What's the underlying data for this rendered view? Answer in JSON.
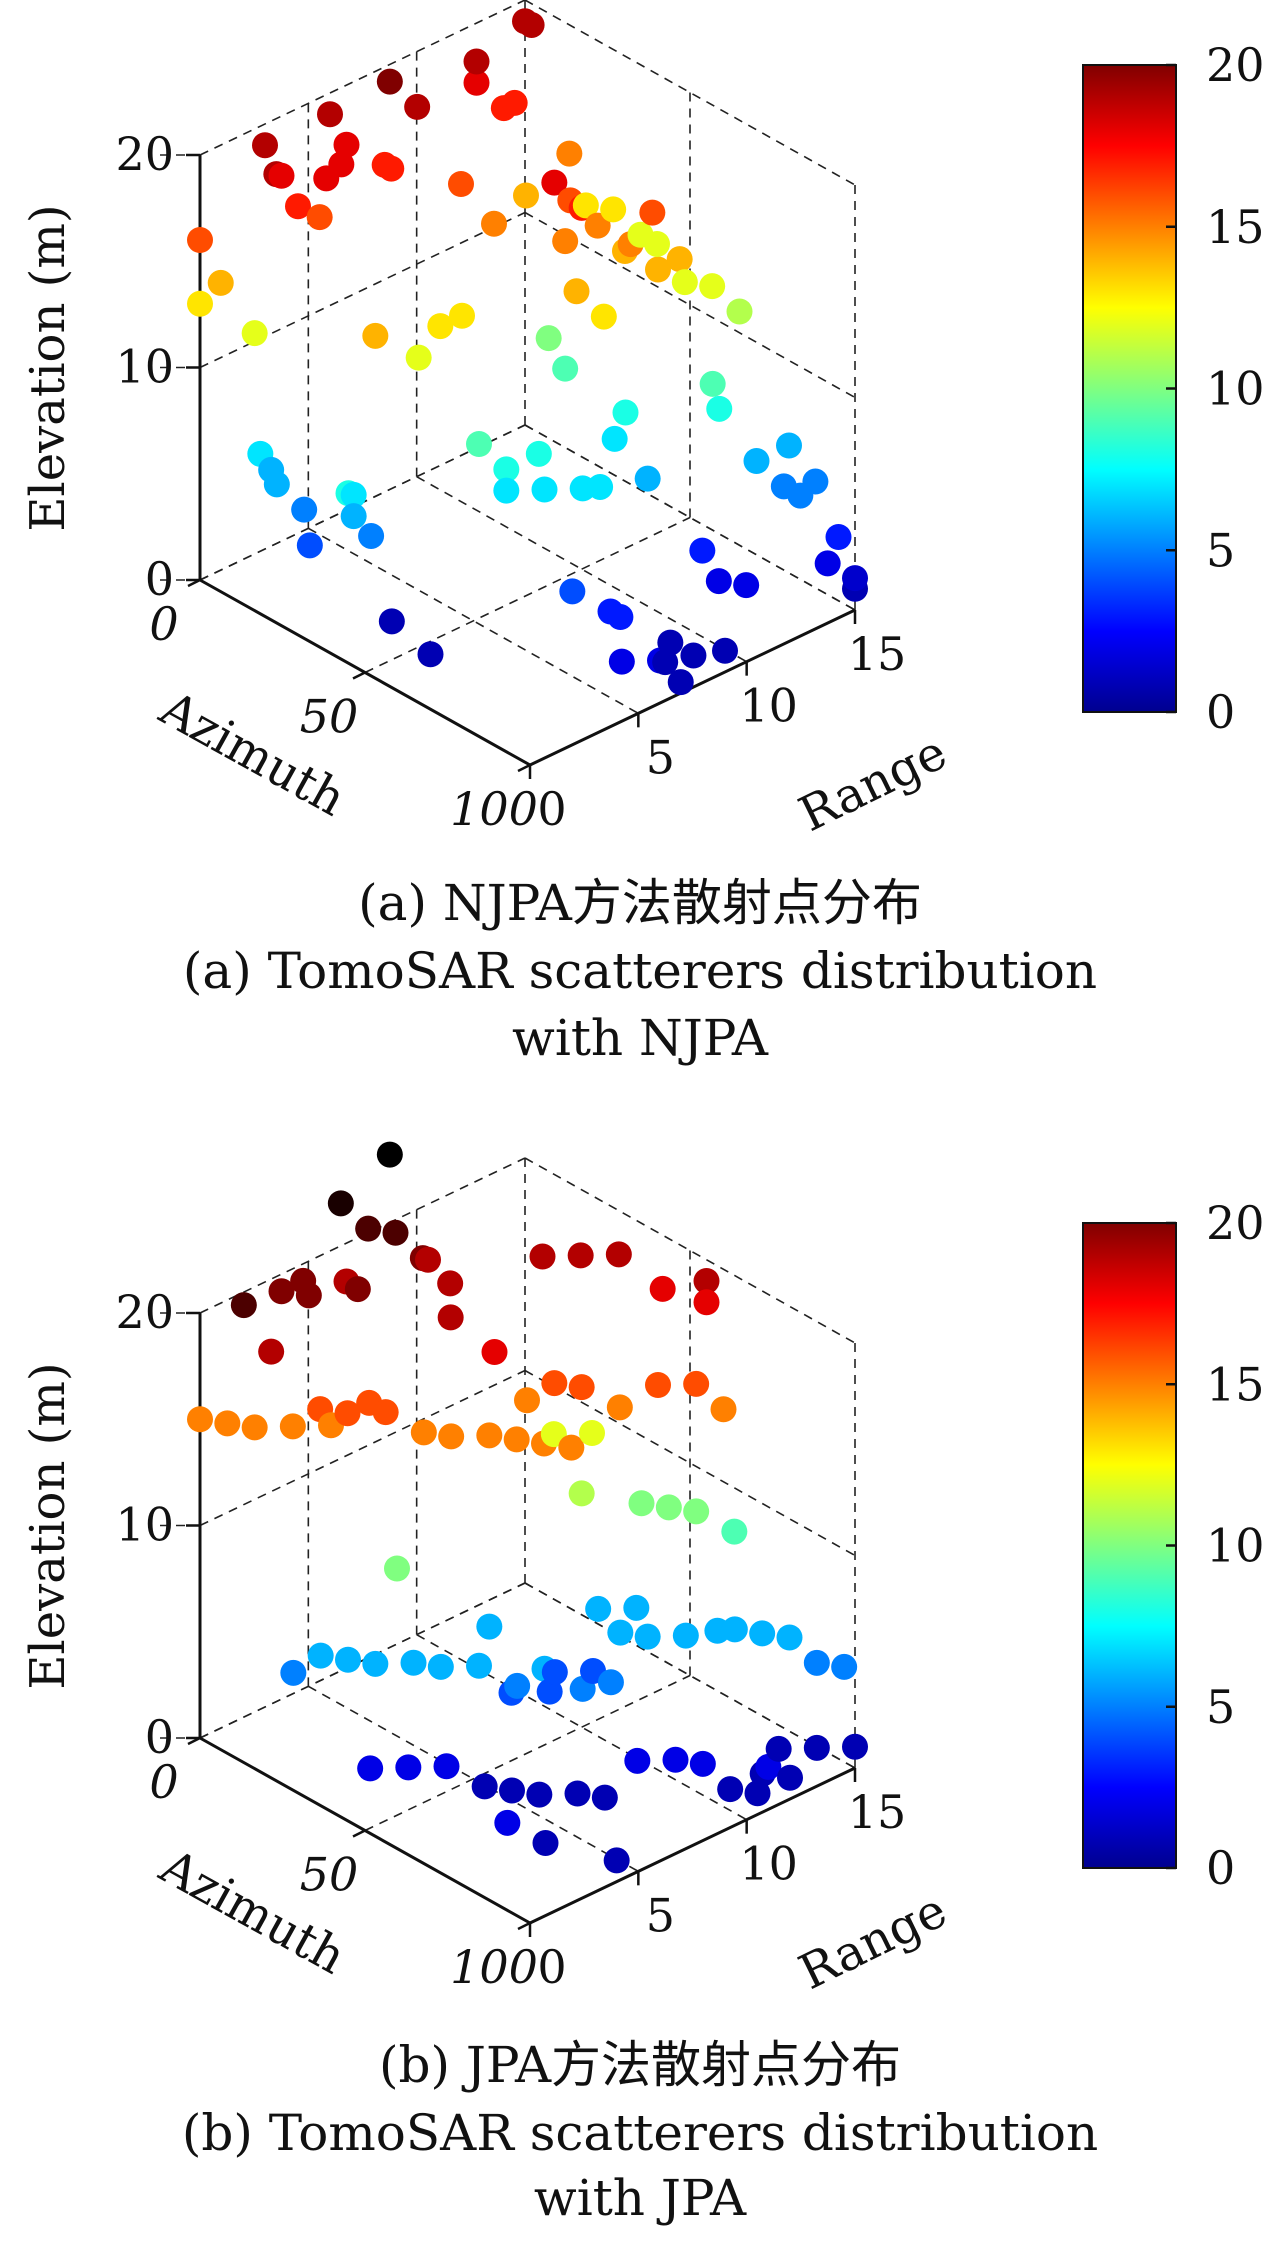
{
  "figure": {
    "panels": [
      {
        "caption_lines": [
          "(a) NJPA方法散射点分布",
          "(a) TomoSAR scatterers distribution",
          "with NJPA"
        ],
        "colorbar_ticks": [
          "20",
          "15",
          "10",
          "5",
          "0"
        ]
      },
      {
        "caption_lines": [
          "(b) JPA方法散射点分布",
          "(b) TomoSAR scatterers distribution",
          "with JPA"
        ],
        "colorbar_ticks": [
          "20",
          "15",
          "10",
          "5",
          "0"
        ]
      }
    ]
  },
  "chart_data": [
    {
      "type": "scatter",
      "zlabel": "Elevation (m)",
      "xlabel": "Range",
      "ylabel": "Azimuth",
      "xlim": [
        0,
        15
      ],
      "ylim": [
        0,
        100
      ],
      "zlim": [
        0,
        20
      ],
      "x_ticks": [
        "0",
        "5",
        "10",
        "15"
      ],
      "y_ticks": [
        "0",
        "50",
        "100"
      ],
      "z_ticks": [
        "0",
        "10",
        "20"
      ],
      "colormap": "jet",
      "clim": [
        0,
        20
      ],
      "grid": true,
      "points": [
        [
          0,
          0,
          16
        ],
        [
          0,
          0,
          13
        ],
        [
          0.5,
          3,
          14
        ],
        [
          1,
          10,
          12
        ],
        [
          0.5,
          15,
          7
        ],
        [
          1,
          15,
          6
        ],
        [
          0.5,
          20,
          6
        ],
        [
          1,
          25,
          5
        ],
        [
          0.5,
          30,
          4
        ],
        [
          1,
          40,
          7
        ],
        [
          1,
          40,
          6
        ],
        [
          1.5,
          42,
          5
        ],
        [
          0,
          45,
          8
        ],
        [
          2,
          40,
          14
        ],
        [
          2,
          45,
          1
        ],
        [
          1.5,
          60,
          1
        ],
        [
          2,
          10,
          19
        ],
        [
          3,
          0,
          19
        ],
        [
          3,
          5,
          18
        ],
        [
          3,
          10,
          17
        ],
        [
          4,
          10,
          16
        ],
        [
          4,
          12,
          18
        ],
        [
          5,
          10,
          18
        ],
        [
          6,
          0,
          19
        ],
        [
          6,
          5,
          18
        ],
        [
          7,
          10,
          17
        ],
        [
          7,
          12,
          17
        ],
        [
          5,
          40,
          13
        ],
        [
          6,
          40,
          13
        ],
        [
          4.5,
          55,
          9
        ],
        [
          5,
          60,
          8
        ],
        [
          5,
          60,
          7
        ],
        [
          6,
          65,
          7
        ],
        [
          7,
          70,
          7
        ],
        [
          7.5,
          72,
          7
        ],
        [
          6.5,
          60,
          8
        ],
        [
          4,
          40,
          12
        ],
        [
          5,
          80,
          4
        ],
        [
          6,
          85,
          3
        ],
        [
          7,
          95,
          1
        ],
        [
          8,
          97,
          1
        ],
        [
          9,
          100,
          1
        ],
        [
          5,
          95,
          2
        ],
        [
          6,
          100,
          2
        ],
        [
          6.5,
          103,
          1
        ],
        [
          6,
          88,
          3
        ],
        [
          8,
          90,
          1
        ],
        [
          9,
          20,
          16
        ],
        [
          9,
          30,
          15
        ],
        [
          9.5,
          45,
          18
        ],
        [
          10,
          50,
          17
        ],
        [
          9,
          55,
          14
        ],
        [
          9.5,
          60,
          13
        ],
        [
          10,
          40,
          10
        ],
        [
          10,
          45,
          9
        ],
        [
          10.5,
          60,
          8
        ],
        [
          10,
          60,
          7
        ],
        [
          10,
          70,
          6
        ],
        [
          11,
          80,
          3
        ],
        [
          11,
          85,
          2
        ],
        [
          11.5,
          90,
          2
        ],
        [
          10,
          45,
          15
        ],
        [
          11,
          40,
          16
        ],
        [
          11.5,
          45,
          15
        ],
        [
          12,
          50,
          14
        ],
        [
          12.5,
          55,
          16
        ],
        [
          12,
          60,
          14
        ],
        [
          13,
          60,
          14
        ],
        [
          11.5,
          55,
          15
        ],
        [
          12,
          5,
          18
        ],
        [
          12.5,
          10,
          17
        ],
        [
          13,
          10,
          17
        ],
        [
          14,
          20,
          15
        ],
        [
          14,
          25,
          13
        ],
        [
          14.5,
          30,
          13
        ],
        [
          15,
          35,
          12
        ],
        [
          15,
          40,
          12
        ],
        [
          14,
          55,
          12
        ],
        [
          14.5,
          60,
          12
        ],
        [
          15,
          65,
          11
        ],
        [
          13,
          70,
          9
        ],
        [
          13,
          72,
          8
        ],
        [
          13.5,
          80,
          6
        ],
        [
          14,
          85,
          5
        ],
        [
          14,
          90,
          5
        ],
        [
          14.5,
          95,
          2
        ],
        [
          15,
          100,
          1
        ],
        [
          15,
          100,
          1.5
        ],
        [
          15,
          0,
          19
        ],
        [
          15,
          2,
          19
        ],
        [
          15,
          80,
          6
        ],
        [
          15,
          88,
          5
        ],
        [
          15,
          95,
          3
        ],
        [
          8,
          5,
          20
        ],
        [
          8.5,
          10,
          19
        ],
        [
          12,
          20,
          14
        ],
        [
          12,
          5,
          19
        ]
      ]
    },
    {
      "type": "scatter",
      "zlabel": "Elevation (m)",
      "xlabel": "Range",
      "ylabel": "Azimuth",
      "xlim": [
        0,
        15
      ],
      "ylim": [
        0,
        100
      ],
      "zlim": [
        0,
        20
      ],
      "x_ticks": [
        "0",
        "5",
        "10",
        "15"
      ],
      "y_ticks": [
        "0",
        "50",
        "100"
      ],
      "z_ticks": [
        "0",
        "10",
        "20"
      ],
      "colormap": "jet",
      "clim": [
        0,
        20
      ],
      "grid": true,
      "points": [
        [
          0,
          0,
          15
        ],
        [
          0.5,
          5,
          15
        ],
        [
          1,
          10,
          15
        ],
        [
          2,
          15,
          15
        ],
        [
          2.5,
          20,
          16
        ],
        [
          3,
          25,
          16
        ],
        [
          4,
          30,
          16
        ],
        [
          5,
          35,
          15
        ],
        [
          5.5,
          40,
          15
        ],
        [
          6.5,
          45,
          15
        ],
        [
          7,
          50,
          15
        ],
        [
          7.5,
          55,
          15
        ],
        [
          8,
          60,
          15
        ],
        [
          3,
          20,
          15
        ],
        [
          4,
          25,
          16
        ],
        [
          0.5,
          10,
          21
        ],
        [
          1,
          15,
          19
        ],
        [
          3,
          5,
          20
        ],
        [
          3.5,
          10,
          20
        ],
        [
          4,
          5,
          20
        ],
        [
          5,
          15,
          20
        ],
        [
          6,
          5,
          19
        ],
        [
          6.5,
          0,
          22
        ],
        [
          7,
          5,
          21
        ],
        [
          7.5,
          10,
          21
        ],
        [
          8,
          15,
          20
        ],
        [
          8.5,
          20,
          19
        ],
        [
          8,
          5,
          24
        ],
        [
          9,
          10,
          19
        ],
        [
          7,
          30,
          19
        ],
        [
          7.5,
          40,
          18
        ],
        [
          9,
          40,
          15
        ],
        [
          9.5,
          45,
          16
        ],
        [
          10,
          50,
          16
        ],
        [
          11,
          55,
          15
        ],
        [
          12,
          60,
          16
        ],
        [
          13,
          65,
          16
        ],
        [
          13.5,
          70,
          15
        ],
        [
          12,
          25,
          19
        ],
        [
          13,
          30,
          19
        ],
        [
          14,
          35,
          19
        ],
        [
          14.5,
          45,
          18
        ],
        [
          15,
          55,
          19
        ],
        [
          15,
          55,
          18
        ],
        [
          11,
          35,
          12
        ],
        [
          12,
          40,
          12
        ],
        [
          10,
          50,
          11
        ],
        [
          12,
          55,
          10
        ],
        [
          12.5,
          60,
          10
        ],
        [
          13,
          65,
          10
        ],
        [
          14,
          70,
          9
        ],
        [
          3,
          40,
          10
        ],
        [
          0.5,
          25,
          5
        ],
        [
          1,
          30,
          6
        ],
        [
          1.5,
          35,
          6
        ],
        [
          2,
          40,
          6
        ],
        [
          3,
          45,
          6
        ],
        [
          3.5,
          50,
          6
        ],
        [
          4.5,
          55,
          6
        ],
        [
          5.5,
          60,
          5
        ],
        [
          6,
          65,
          6
        ],
        [
          7,
          70,
          5
        ],
        [
          8,
          72,
          5
        ],
        [
          8,
          55,
          4
        ],
        [
          9,
          60,
          4
        ],
        [
          9.5,
          65,
          6
        ],
        [
          10,
          70,
          6
        ],
        [
          11,
          75,
          6
        ],
        [
          12,
          78,
          6
        ],
        [
          12.5,
          80,
          6
        ],
        [
          13,
          85,
          6
        ],
        [
          13.5,
          90,
          6
        ],
        [
          14,
          95,
          5
        ],
        [
          14.5,
          100,
          5
        ],
        [
          10,
          55,
          6
        ],
        [
          11,
          60,
          6
        ],
        [
          6.5,
          45,
          6
        ],
        [
          6,
          55,
          4
        ],
        [
          7,
          60,
          4
        ],
        [
          1,
          45,
          2
        ],
        [
          2,
          50,
          2
        ],
        [
          3,
          55,
          2
        ],
        [
          4,
          60,
          1
        ],
        [
          4.5,
          65,
          1
        ],
        [
          5,
          70,
          1
        ],
        [
          6,
          75,
          1
        ],
        [
          6.5,
          80,
          1
        ],
        [
          8,
          80,
          2
        ],
        [
          9,
          85,
          2
        ],
        [
          9.5,
          90,
          2
        ],
        [
          10,
          95,
          1
        ],
        [
          10.5,
          100,
          1
        ],
        [
          11,
          100,
          2
        ],
        [
          11.5,
          95,
          1
        ],
        [
          12,
          100,
          1
        ],
        [
          13,
          90,
          1
        ],
        [
          14,
          95,
          1
        ],
        [
          15,
          100,
          1
        ],
        [
          4,
          100,
          1
        ],
        [
          2,
          80,
          2
        ],
        [
          3,
          85,
          1
        ]
      ]
    }
  ]
}
